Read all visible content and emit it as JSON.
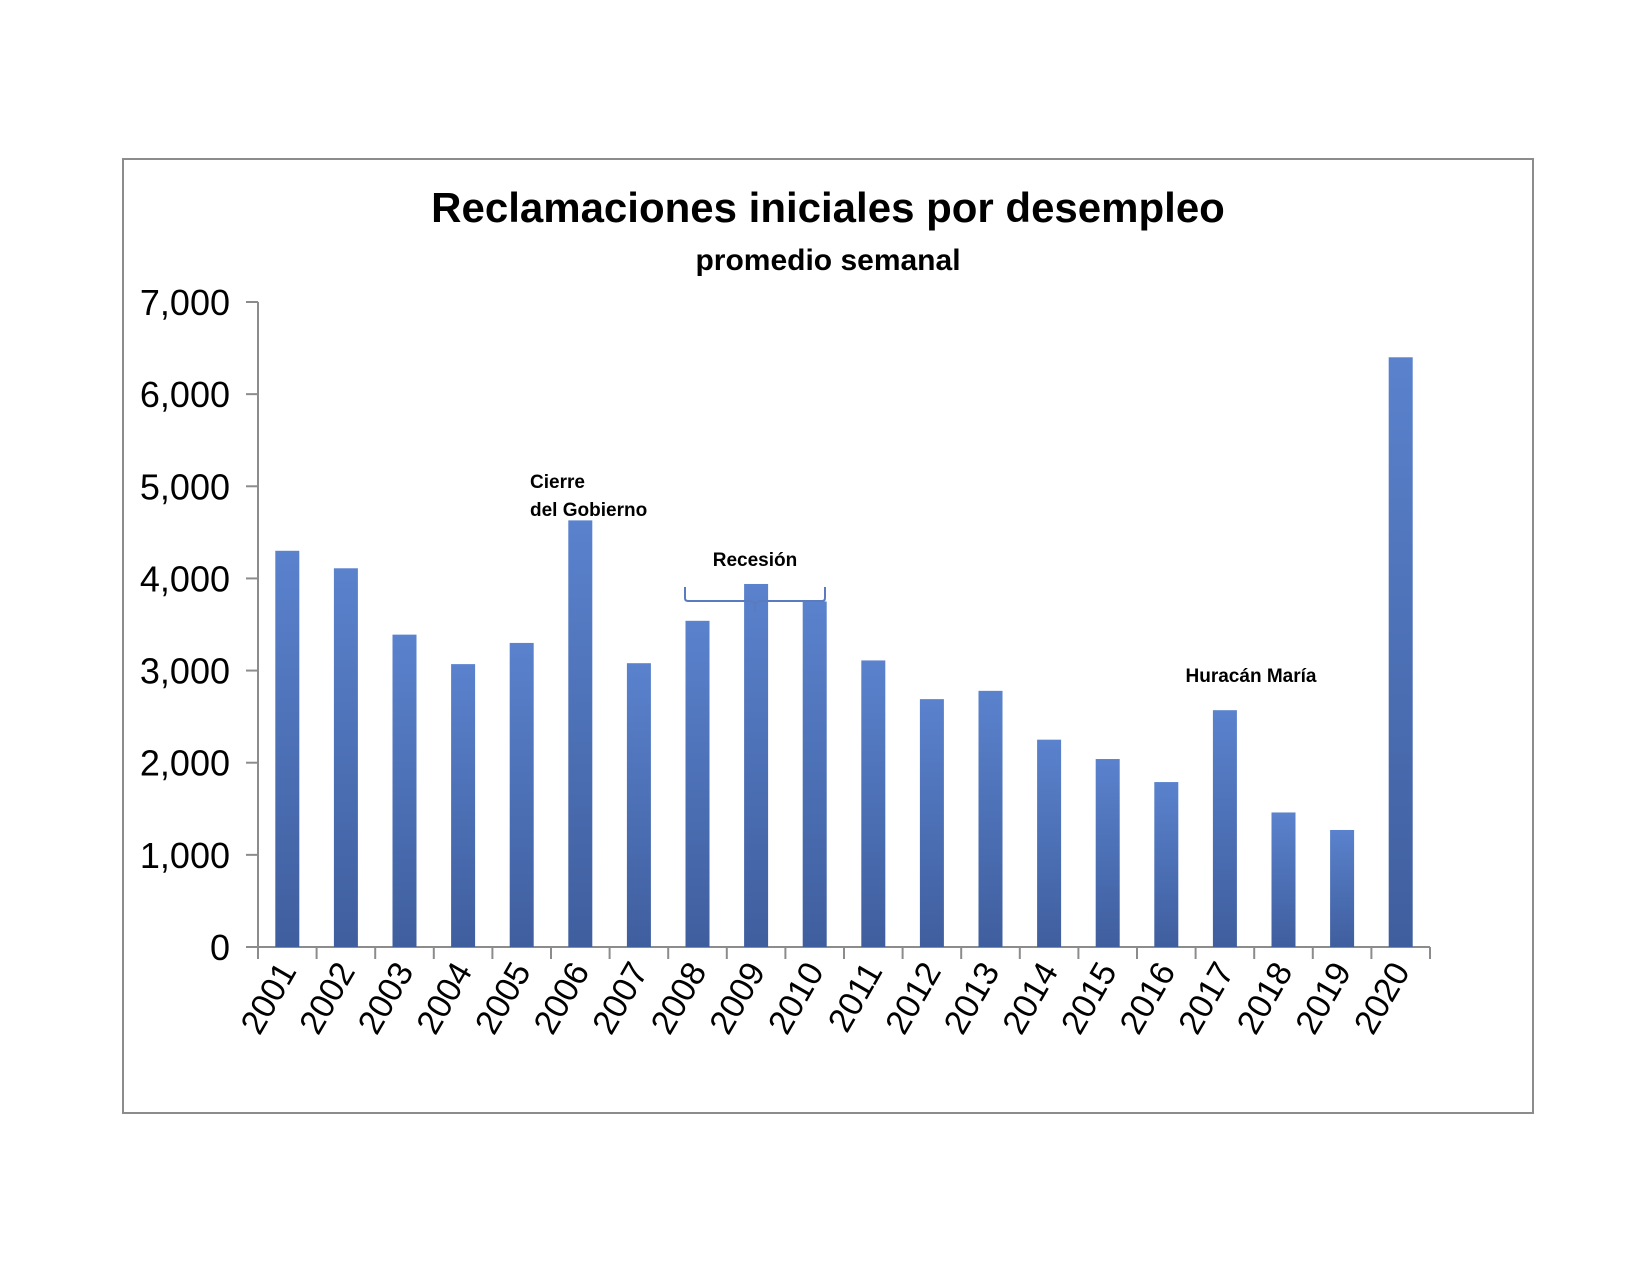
{
  "chart_data": {
    "type": "bar",
    "title": "Reclamaciones iniciales por desempleo",
    "subtitle": "promedio semanal",
    "xlabel": "",
    "ylabel": "",
    "categories": [
      "2001",
      "2002",
      "2003",
      "2004",
      "2005",
      "2006",
      "2007",
      "2008",
      "2009",
      "2010",
      "2011",
      "2012",
      "2013",
      "2014",
      "2015",
      "2016",
      "2017",
      "2018",
      "2019",
      "2020"
    ],
    "values": [
      4300,
      4110,
      3390,
      3070,
      3300,
      4630,
      3080,
      3540,
      3940,
      3750,
      3110,
      2690,
      2780,
      2250,
      2040,
      1790,
      2570,
      1460,
      1270,
      6400
    ],
    "ylim": [
      0,
      7000
    ],
    "yticks": [
      0,
      1000,
      2000,
      3000,
      4000,
      5000,
      6000,
      7000
    ],
    "ytick_labels": [
      "0",
      "1,000",
      "2,000",
      "3,000",
      "4,000",
      "5,000",
      "6,000",
      "7,000"
    ],
    "grid": false,
    "legend": "none",
    "bar_color": "#4f74c0",
    "annotations": {
      "shutdown_line1": "Cierre",
      "shutdown_line2": "del Gobierno",
      "recession": "Recesión",
      "hurricane": "Huracán María"
    }
  }
}
